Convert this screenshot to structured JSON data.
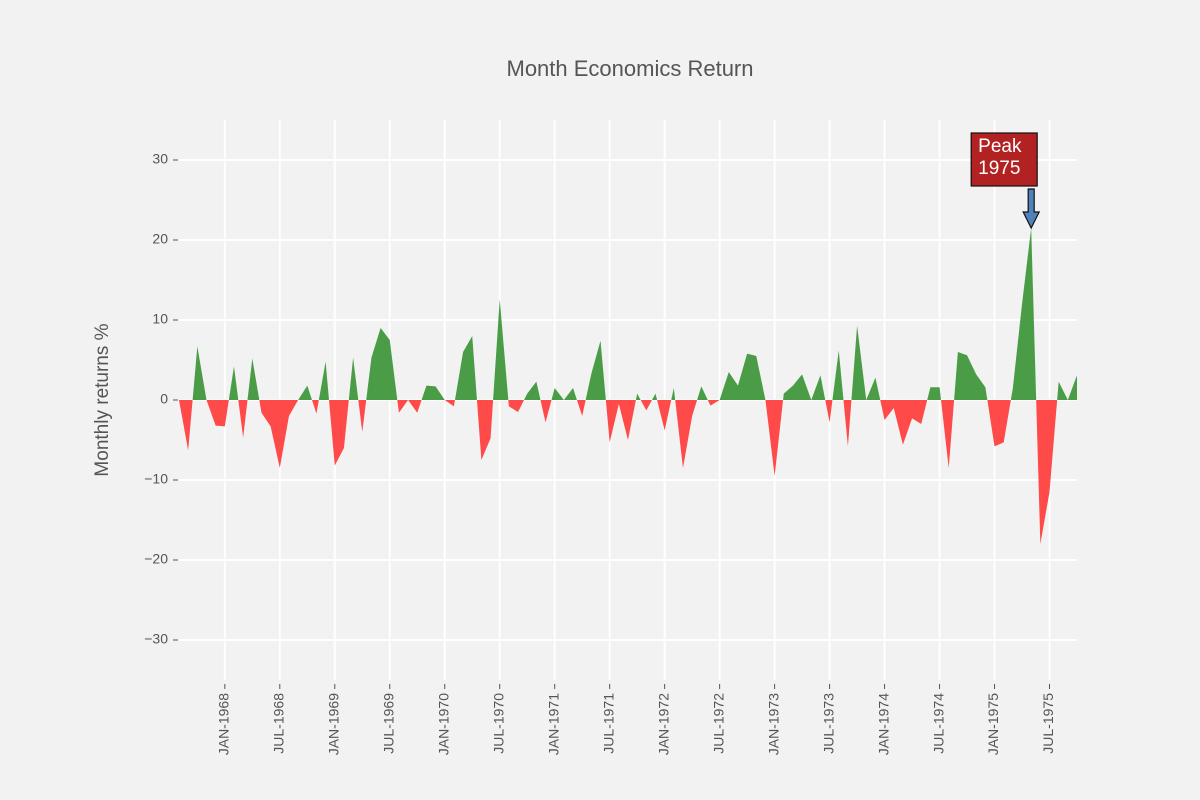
{
  "chart_data": {
    "type": "area",
    "title": "Month Economics Return",
    "y_label": "Monthly returns %",
    "x": [
      "1967-08",
      "1967-09",
      "1967-10",
      "1967-11",
      "1967-12",
      "1968-01",
      "1968-02",
      "1968-03",
      "1968-04",
      "1968-05",
      "1968-06",
      "1968-07",
      "1968-08",
      "1968-09",
      "1968-10",
      "1968-11",
      "1968-12",
      "1969-01",
      "1969-02",
      "1969-03",
      "1969-04",
      "1969-05",
      "1969-06",
      "1969-07",
      "1969-08",
      "1969-09",
      "1969-10",
      "1969-11",
      "1969-12",
      "1970-01",
      "1970-02",
      "1970-03",
      "1970-04",
      "1970-05",
      "1970-06",
      "1970-07",
      "1970-08",
      "1970-09",
      "1970-10",
      "1970-11",
      "1970-12",
      "1971-01",
      "1971-02",
      "1971-03",
      "1971-04",
      "1971-05",
      "1971-06",
      "1971-07",
      "1971-08",
      "1971-09",
      "1971-10",
      "1971-11",
      "1971-12",
      "1972-01",
      "1972-02",
      "1972-03",
      "1972-04",
      "1972-05",
      "1972-06",
      "1972-07",
      "1972-08",
      "1972-09",
      "1972-10",
      "1972-11",
      "1972-12",
      "1973-01",
      "1973-02",
      "1973-03",
      "1973-04",
      "1973-05",
      "1973-06",
      "1973-07",
      "1973-08",
      "1973-09",
      "1973-10",
      "1973-11",
      "1973-12",
      "1974-01",
      "1974-02",
      "1974-03",
      "1974-04",
      "1974-05",
      "1974-06",
      "1974-07",
      "1974-08",
      "1974-09",
      "1974-10",
      "1974-11",
      "1974-12",
      "1975-01",
      "1975-02",
      "1975-03",
      "1975-04",
      "1975-05",
      "1975-06",
      "1975-07",
      "1975-08",
      "1975-09",
      "1975-10"
    ],
    "values": [
      0,
      -6.3,
      6.7,
      0,
      -3.2,
      -3.3,
      4.2,
      -4.7,
      5.2,
      -1.6,
      -3.3,
      -8.5,
      -2,
      0,
      1.8,
      -1.7,
      4.8,
      -8.2,
      -6,
      5.3,
      -4,
      5.3,
      9,
      7.5,
      -1.6,
      0,
      -1.6,
      1.8,
      1.7,
      0,
      -0.8,
      6,
      8,
      -7.5,
      -4.8,
      12.6,
      -0.8,
      -1.5,
      0.8,
      2.3,
      -2.8,
      1.5,
      0,
      1.5,
      -2,
      3.3,
      7.4,
      -5.3,
      -0.5,
      -5,
      0.8,
      -1.3,
      0.8,
      -3.8,
      1.5,
      -8.5,
      -2,
      1.7,
      -0.7,
      0,
      3.5,
      1.8,
      5.8,
      5.5,
      0,
      -9.5,
      0.8,
      1.8,
      3.2,
      0,
      3.1,
      -2.8,
      6.2,
      -5.8,
      9.3,
      0,
      2.8,
      -2.5,
      -1,
      -5.6,
      -2.3,
      -3,
      1.6,
      1.6,
      -8.5,
      6,
      5.6,
      3.2,
      1.6,
      -5.8,
      -5.3,
      1.5,
      12,
      21.5,
      -18,
      -11.5,
      2.3,
      0,
      3.1
    ],
    "colors": {
      "positive": "#4a9d46",
      "negative": "#ff4a4a"
    },
    "xlim": [
      "1967-08",
      "1975-10"
    ],
    "xticks": [
      {
        "value": "1968-01",
        "label": "JAN-1968"
      },
      {
        "value": "1968-07",
        "label": "JUL-1968"
      },
      {
        "value": "1969-01",
        "label": "JAN-1969"
      },
      {
        "value": "1969-07",
        "label": "JUL-1969"
      },
      {
        "value": "1970-01",
        "label": "JAN-1970"
      },
      {
        "value": "1970-07",
        "label": "JUL-1970"
      },
      {
        "value": "1971-01",
        "label": "JAN-1971"
      },
      {
        "value": "1971-07",
        "label": "JUL-1971"
      },
      {
        "value": "1972-01",
        "label": "JAN-1972"
      },
      {
        "value": "1972-07",
        "label": "JUL-1972"
      },
      {
        "value": "1973-01",
        "label": "JAN-1973"
      },
      {
        "value": "1973-07",
        "label": "JUL-1973"
      },
      {
        "value": "1974-01",
        "label": "JAN-1974"
      },
      {
        "value": "1974-07",
        "label": "JUL-1974"
      },
      {
        "value": "1975-01",
        "label": "JAN-1975"
      },
      {
        "value": "1975-07",
        "label": "JUL-1975"
      }
    ],
    "ylim": [
      -35,
      35
    ],
    "yticks": [
      {
        "value": -30,
        "label": "−30"
      },
      {
        "value": -20,
        "label": "−20"
      },
      {
        "value": -10,
        "label": "−10"
      },
      0,
      10,
      20,
      30
    ],
    "grid": true,
    "annotations": [
      {
        "lines": [
          "Peak",
          "1975"
        ],
        "x": "1975-05",
        "y": 21.5
      }
    ]
  }
}
